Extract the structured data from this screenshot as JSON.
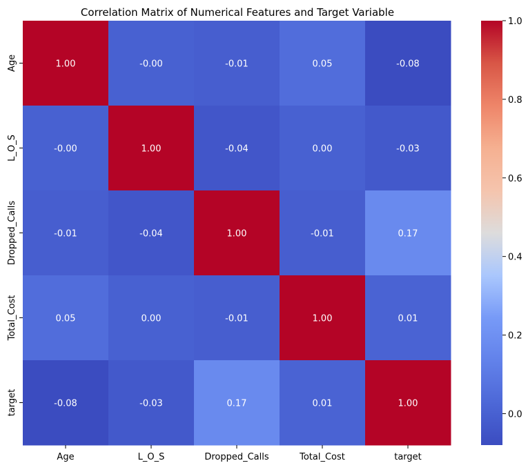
{
  "chart_data": {
    "type": "heatmap",
    "title": "Correlation Matrix of Numerical Features and Target Variable",
    "xlabel": "",
    "ylabel": "",
    "x_labels": [
      "Age",
      "L_O_S",
      "Dropped_Calls",
      "Total_Cost",
      "target"
    ],
    "y_labels": [
      "Age",
      "L_O_S",
      "Dropped_Calls",
      "Total_Cost",
      "target"
    ],
    "matrix": [
      [
        1.0,
        -0.0,
        -0.01,
        0.05,
        -0.08
      ],
      [
        -0.0,
        1.0,
        -0.04,
        0.0,
        -0.03
      ],
      [
        -0.01,
        -0.04,
        1.0,
        -0.01,
        0.17
      ],
      [
        0.05,
        0.0,
        -0.01,
        1.0,
        0.01
      ],
      [
        -0.08,
        -0.03,
        0.17,
        0.01,
        1.0
      ]
    ],
    "cell_labels": [
      [
        "1.00",
        "-0.00",
        "-0.01",
        "0.05",
        "-0.08"
      ],
      [
        "-0.00",
        "1.00",
        "-0.04",
        "0.00",
        "-0.03"
      ],
      [
        "-0.01",
        "-0.04",
        "1.00",
        "-0.01",
        "0.17"
      ],
      [
        "0.05",
        "0.00",
        "-0.01",
        "1.00",
        "0.01"
      ],
      [
        "-0.08",
        "-0.03",
        "0.17",
        "0.01",
        "1.00"
      ]
    ],
    "colormap": "coolwarm",
    "vmin": -0.08,
    "vmax": 1.0,
    "colorbar_ticks": [
      0.0,
      0.2,
      0.4,
      0.6,
      0.8,
      1.0
    ],
    "colorbar_tick_labels": [
      "0.0",
      "0.2",
      "0.4",
      "0.6",
      "0.8",
      "1.0"
    ],
    "colorbar_position": "right",
    "grid": false
  }
}
